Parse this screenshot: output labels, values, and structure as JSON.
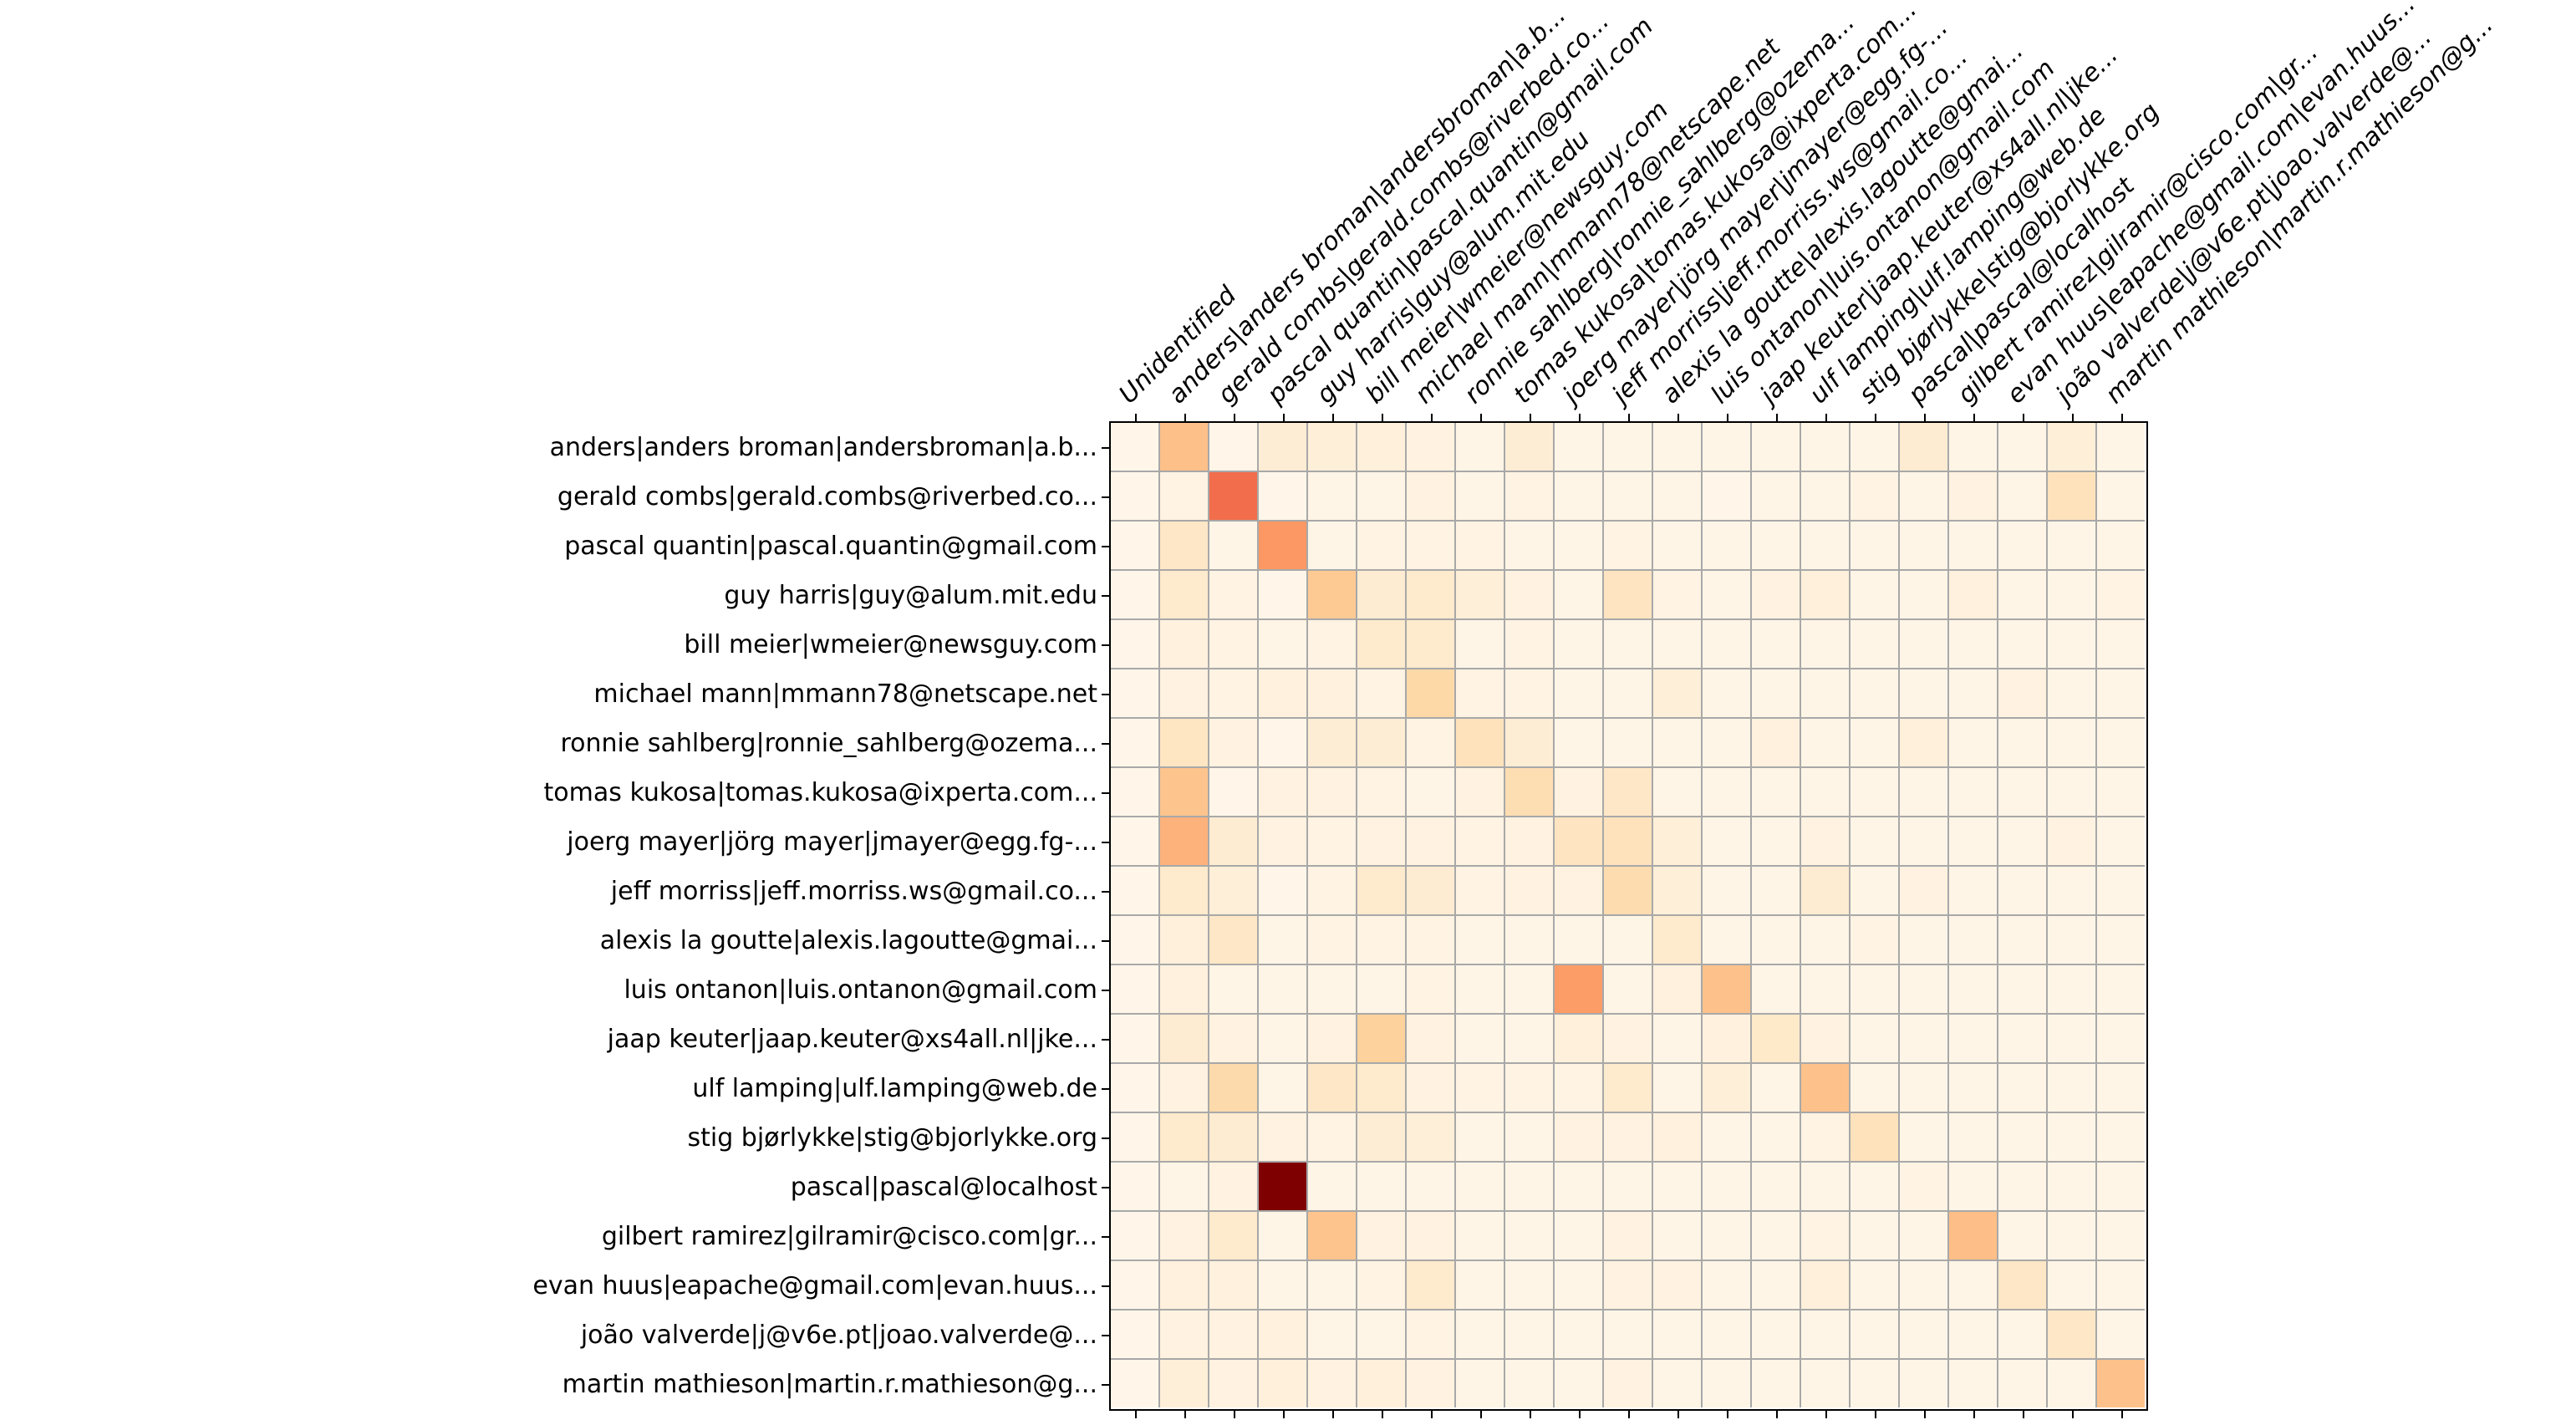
{
  "chart_data": {
    "type": "heatmap",
    "title": "",
    "xlabel": "",
    "ylabel": "",
    "legend_position": "none",
    "grid_on": true,
    "x_labels": [
      "Unidentified",
      "anders|anders broman|andersbroman|a.b...",
      "gerald combs|gerald.combs@riverbed.co...",
      "pascal quantin|pascal.quantin@gmail.com",
      "guy harris|guy@alum.mit.edu",
      "bill meier|wmeier@newsguy.com",
      "michael mann|mmann78@netscape.net",
      "ronnie sahlberg|ronnie_sahlberg@ozema...",
      "tomas kukosa|tomas.kukosa@ixperta.com...",
      "joerg mayer|jörg mayer|jmayer@egg.fg-...",
      "jeff morriss|jeff.morriss.ws@gmail.co...",
      "alexis la goutte|alexis.lagoutte@gmai...",
      "luis ontanon|luis.ontanon@gmail.com",
      "jaap keuter|jaap.keuter@xs4all.nl|jke...",
      "ulf lamping|ulf.lamping@web.de",
      "stig bjørlykke|stig@bjorlykke.org",
      "pascal|pascal@localhost",
      "gilbert ramirez|gilramir@cisco.com|gr...",
      "evan huus|eapache@gmail.com|evan.huus...",
      "joão valverde|j@v6e.pt|joao.valverde@...",
      "martin mathieson|martin.r.mathieson@g..."
    ],
    "y_labels": [
      "anders|anders broman|andersbroman|a.b...",
      "gerald combs|gerald.combs@riverbed.co...",
      "pascal quantin|pascal.quantin@gmail.com",
      "guy harris|guy@alum.mit.edu",
      "bill meier|wmeier@newsguy.com",
      "michael mann|mmann78@netscape.net",
      "ronnie sahlberg|ronnie_sahlberg@ozema...",
      "tomas kukosa|tomas.kukosa@ixperta.com...",
      "joerg mayer|jörg mayer|jmayer@egg.fg-...",
      "jeff morriss|jeff.morriss.ws@gmail.co...",
      "alexis la goutte|alexis.lagoutte@gmai...",
      "luis ontanon|luis.ontanon@gmail.com",
      "jaap keuter|jaap.keuter@xs4all.nl|jke...",
      "ulf lamping|ulf.lamping@web.de",
      "stig bjørlykke|stig@bjorlykke.org",
      "pascal|pascal@localhost",
      "gilbert ramirez|gilramir@cisco.com|gr...",
      "evan huus|eapache@gmail.com|evan.huus...",
      "joão valverde|j@v6e.pt|joao.valverde@...",
      "martin mathieson|martin.r.mathieson@g..."
    ],
    "values": [
      [
        0.01,
        0.35,
        0.01,
        0.08,
        0.07,
        0.06,
        0.04,
        0.02,
        0.08,
        0.02,
        0.02,
        0.02,
        0.02,
        0.02,
        0.02,
        0.02,
        0.09,
        0.02,
        0.02,
        0.07,
        0.02
      ],
      [
        0.01,
        0.03,
        0.6,
        0.01,
        0.02,
        0.02,
        0.04,
        0.02,
        0.03,
        0.02,
        0.02,
        0.02,
        0.01,
        0.02,
        0.02,
        0.03,
        0.02,
        0.04,
        0.02,
        0.16,
        0.02
      ],
      [
        0.01,
        0.13,
        0.02,
        0.47,
        0.02,
        0.03,
        0.03,
        0.03,
        0.02,
        0.02,
        0.03,
        0.02,
        0.02,
        0.02,
        0.02,
        0.02,
        0.02,
        0.02,
        0.02,
        0.02,
        0.02
      ],
      [
        0.01,
        0.11,
        0.03,
        0.01,
        0.3,
        0.09,
        0.11,
        0.07,
        0.04,
        0.02,
        0.15,
        0.03,
        0.02,
        0.04,
        0.06,
        0.02,
        0.02,
        0.05,
        0.02,
        0.02,
        0.03
      ],
      [
        0.01,
        0.05,
        0.03,
        0.02,
        0.03,
        0.11,
        0.11,
        0.02,
        0.03,
        0.02,
        0.02,
        0.02,
        0.02,
        0.02,
        0.02,
        0.02,
        0.02,
        0.02,
        0.02,
        0.02,
        0.02
      ],
      [
        0.01,
        0.04,
        0.03,
        0.05,
        0.05,
        0.03,
        0.22,
        0.03,
        0.03,
        0.02,
        0.02,
        0.07,
        0.02,
        0.02,
        0.02,
        0.02,
        0.02,
        0.02,
        0.04,
        0.02,
        0.02
      ],
      [
        0.01,
        0.14,
        0.04,
        0.01,
        0.08,
        0.08,
        0.03,
        0.16,
        0.08,
        0.02,
        0.02,
        0.02,
        0.02,
        0.05,
        0.02,
        0.02,
        0.06,
        0.02,
        0.02,
        0.02,
        0.02
      ],
      [
        0.01,
        0.33,
        0.01,
        0.04,
        0.04,
        0.03,
        0.02,
        0.04,
        0.19,
        0.04,
        0.13,
        0.02,
        0.02,
        0.02,
        0.02,
        0.02,
        0.02,
        0.02,
        0.02,
        0.02,
        0.02
      ],
      [
        0.01,
        0.4,
        0.09,
        0.04,
        0.03,
        0.04,
        0.04,
        0.03,
        0.04,
        0.15,
        0.16,
        0.07,
        0.02,
        0.02,
        0.04,
        0.02,
        0.02,
        0.02,
        0.02,
        0.04,
        0.02
      ],
      [
        0.01,
        0.11,
        0.07,
        0.01,
        0.03,
        0.11,
        0.09,
        0.03,
        0.04,
        0.04,
        0.2,
        0.07,
        0.02,
        0.02,
        0.09,
        0.02,
        0.04,
        0.02,
        0.02,
        0.02,
        0.02
      ],
      [
        0.01,
        0.06,
        0.13,
        0.02,
        0.03,
        0.03,
        0.03,
        0.02,
        0.02,
        0.02,
        0.02,
        0.11,
        0.02,
        0.02,
        0.02,
        0.03,
        0.02,
        0.02,
        0.02,
        0.02,
        0.02
      ],
      [
        0.01,
        0.05,
        0.02,
        0.02,
        0.02,
        0.02,
        0.03,
        0.02,
        0.02,
        0.46,
        0.02,
        0.05,
        0.34,
        0.02,
        0.02,
        0.02,
        0.02,
        0.02,
        0.02,
        0.02,
        0.02
      ],
      [
        0.01,
        0.09,
        0.04,
        0.02,
        0.04,
        0.26,
        0.04,
        0.02,
        0.02,
        0.06,
        0.04,
        0.02,
        0.05,
        0.12,
        0.04,
        0.02,
        0.02,
        0.02,
        0.02,
        0.02,
        0.02
      ],
      [
        0.01,
        0.04,
        0.21,
        0.02,
        0.13,
        0.11,
        0.04,
        0.03,
        0.03,
        0.03,
        0.11,
        0.02,
        0.07,
        0.02,
        0.34,
        0.02,
        0.02,
        0.02,
        0.02,
        0.02,
        0.02
      ],
      [
        0.01,
        0.11,
        0.09,
        0.04,
        0.03,
        0.08,
        0.07,
        0.02,
        0.02,
        0.04,
        0.04,
        0.05,
        0.02,
        0.02,
        0.03,
        0.16,
        0.02,
        0.02,
        0.02,
        0.02,
        0.02
      ],
      [
        0.01,
        0.02,
        0.04,
        1.0,
        0.02,
        0.02,
        0.02,
        0.02,
        0.02,
        0.02,
        0.02,
        0.02,
        0.02,
        0.02,
        0.02,
        0.02,
        0.03,
        0.02,
        0.02,
        0.02,
        0.02
      ],
      [
        0.01,
        0.04,
        0.11,
        0.02,
        0.33,
        0.04,
        0.04,
        0.02,
        0.02,
        0.02,
        0.04,
        0.02,
        0.02,
        0.02,
        0.03,
        0.02,
        0.02,
        0.36,
        0.02,
        0.02,
        0.02
      ],
      [
        0.01,
        0.05,
        0.05,
        0.02,
        0.02,
        0.03,
        0.11,
        0.02,
        0.02,
        0.02,
        0.04,
        0.04,
        0.02,
        0.02,
        0.06,
        0.02,
        0.02,
        0.02,
        0.13,
        0.02,
        0.02
      ],
      [
        0.01,
        0.04,
        0.04,
        0.05,
        0.02,
        0.02,
        0.03,
        0.02,
        0.02,
        0.02,
        0.02,
        0.02,
        0.02,
        0.02,
        0.02,
        0.02,
        0.02,
        0.02,
        0.02,
        0.13,
        0.02
      ],
      [
        0.01,
        0.07,
        0.04,
        0.06,
        0.04,
        0.06,
        0.04,
        0.02,
        0.02,
        0.02,
        0.04,
        0.02,
        0.02,
        0.02,
        0.02,
        0.02,
        0.02,
        0.02,
        0.02,
        0.02,
        0.34
      ]
    ],
    "value_range": [
      0,
      1
    ],
    "colormap": {
      "name": "OrRd",
      "positions": [
        0,
        0.125,
        0.25,
        0.375,
        0.5,
        0.625,
        0.75,
        0.875,
        1
      ],
      "colors": [
        "#fff7ec",
        "#fee8c8",
        "#fdd49e",
        "#fdbb84",
        "#fc8d59",
        "#ef6548",
        "#d7301f",
        "#b30000",
        "#7f0000"
      ]
    },
    "colors": {
      "background": "#ffffff",
      "gridline": "#a8a8a8",
      "spine": "#000000",
      "tick": "#000000",
      "label_text": "#000000"
    }
  }
}
